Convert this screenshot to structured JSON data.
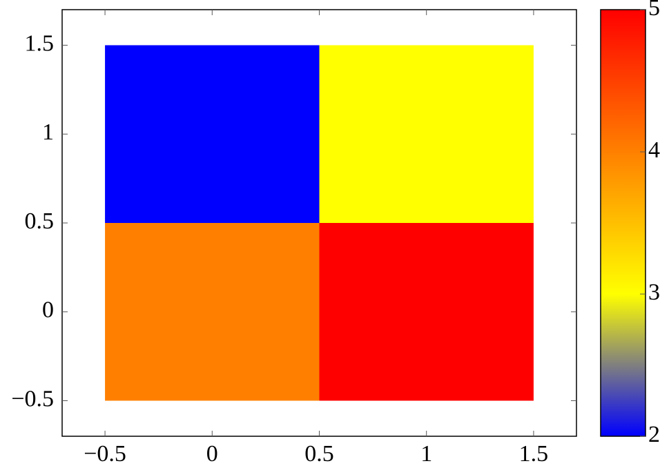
{
  "chart_data": {
    "type": "heatmap",
    "x": [
      0,
      1
    ],
    "y": [
      0,
      1
    ],
    "z": [
      [
        4,
        5
      ],
      [
        2,
        3
      ]
    ],
    "xlim": [
      -0.7,
      1.7
    ],
    "ylim": [
      -0.7,
      1.7
    ],
    "xticks": [
      {
        "value": -0.5,
        "label": "−0.5"
      },
      0,
      0.5,
      1,
      1.5
    ],
    "yticks": [
      {
        "value": -0.5,
        "label": "−0.5"
      },
      0,
      0.5,
      1,
      1.5
    ],
    "colormap": [
      "#0000ff",
      "#ffff00",
      "#ff8000",
      "#ff0000"
    ],
    "clim": [
      2,
      5
    ],
    "cticks": [
      2,
      3,
      4,
      5
    ]
  }
}
